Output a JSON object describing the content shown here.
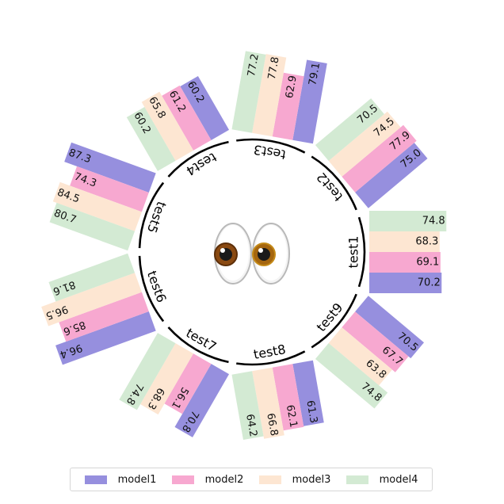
{
  "chart_data": {
    "type": "bar",
    "layout": "radial",
    "categories": [
      "test1",
      "test2",
      "test3",
      "test4",
      "test5",
      "test6",
      "test7",
      "test8",
      "test9"
    ],
    "series": [
      {
        "name": "model1",
        "color": "#968fde",
        "values": [
          70.2,
          75.0,
          79.1,
          60.2,
          87.3,
          96.4,
          70.8,
          61.3,
          70.5
        ],
        "labels": [
          "70.2",
          "75.0",
          "79.1",
          "60.2",
          "87.3",
          "96.4",
          "70.8",
          "61.3",
          "70.5"
        ]
      },
      {
        "name": "model2",
        "color": "#f7a8d0",
        "values": [
          69.1,
          77.9,
          62.9,
          61.2,
          74.3,
          85.6,
          56.1,
          62.1,
          67.7
        ],
        "labels": [
          "69.1",
          "77.9",
          "62.9",
          "61.2",
          "74.3",
          "85.6",
          "56.1",
          "62.1",
          "67.7"
        ]
      },
      {
        "name": "model3",
        "color": "#fde6d2",
        "values": [
          68.3,
          74.5,
          77.8,
          65.8,
          84.5,
          96.5,
          68.3,
          66.8,
          63.8
        ],
        "labels": [
          "68.3",
          "74.5",
          "77.8",
          "65.8",
          "84.5",
          "96.5",
          "68.3",
          "66.8",
          "63.8"
        ]
      },
      {
        "name": "model4",
        "color": "#d3ead3",
        "values": [
          74.8,
          70.5,
          77.2,
          60.2,
          80.7,
          81.6,
          74.8,
          64.2,
          74.8
        ],
        "labels": [
          "74.8",
          "70.5",
          "77.2",
          "60.2",
          "80.7",
          "81.6",
          "74.8",
          "64.2",
          "74.8"
        ]
      }
    ],
    "center_icon": "eyes-emoji",
    "legend_position": "bottom",
    "grid": false
  }
}
